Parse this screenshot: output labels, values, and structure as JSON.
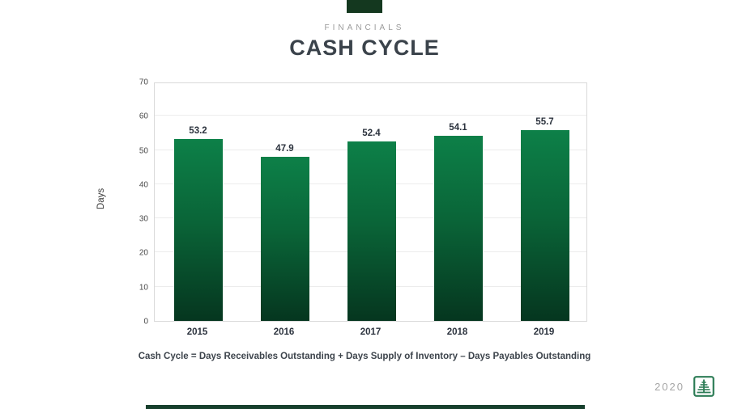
{
  "slide": {
    "eyebrow": "FINANCIALS",
    "title": "CASH CYCLE",
    "footnote": "Cash Cycle = Days Receivables Outstanding + Days Supply of Inventory – Days Payables Outstanding",
    "footer_year": "2020"
  },
  "colors": {
    "accent_dark_green": "#14381f",
    "bar_gradient_top": "#0d8048",
    "bar_gradient_bottom": "#05361f",
    "logo_green": "#2e7d57",
    "title_text": "#3b434b",
    "eyebrow_text": "#9b9b9b",
    "footer_year_text": "#a6a6a6"
  },
  "icons": {
    "logo": "tree-logo"
  },
  "chart_data": {
    "type": "bar",
    "title": "CASH CYCLE",
    "categories": [
      "2015",
      "2016",
      "2017",
      "2018",
      "2019"
    ],
    "values": [
      53.2,
      47.9,
      52.4,
      54.1,
      55.7
    ],
    "bar_labels": [
      "53.2",
      "47.9",
      "52.4",
      "54.1",
      "55.7"
    ],
    "xlabel": "",
    "ylabel": "Days",
    "ylim": [
      0,
      70
    ],
    "yticks": [
      0,
      10,
      20,
      30,
      40,
      50,
      60,
      70
    ],
    "grid": true,
    "legend": false
  }
}
